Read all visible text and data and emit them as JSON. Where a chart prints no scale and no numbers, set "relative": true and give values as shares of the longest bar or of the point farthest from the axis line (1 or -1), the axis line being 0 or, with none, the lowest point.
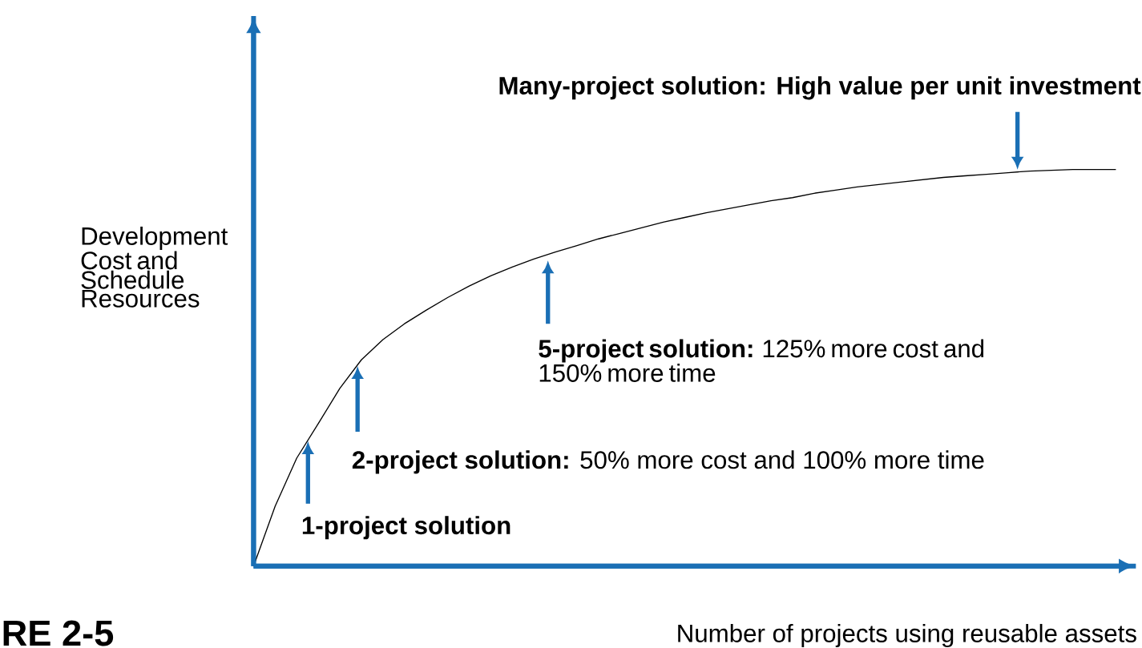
{
  "chart_data": {
    "type": "line",
    "relative": true,
    "ylabel": "Development Cost and Schedule Resources",
    "xlabel": "Number of projects using reusable assets",
    "categories": [
      null,
      null,
      null,
      null,
      null,
      null,
      null,
      null,
      null,
      null,
      null,
      null,
      null,
      null,
      null,
      null,
      null,
      null,
      null,
      null,
      null,
      null,
      null,
      null,
      null,
      null,
      null,
      null,
      null,
      null,
      null,
      null,
      null,
      null,
      null,
      null,
      null,
      null,
      null,
      null,
      null
    ],
    "values": [
      0,
      0.151,
      0.272,
      0.359,
      0.448,
      0.52,
      0.571,
      0.611,
      0.645,
      0.677,
      0.706,
      0.732,
      0.754,
      0.774,
      0.792,
      0.808,
      0.825,
      0.839,
      0.853,
      0.867,
      0.879,
      0.891,
      0.901,
      0.911,
      0.921,
      0.929,
      0.94,
      0.948,
      0.956,
      0.962,
      0.968,
      0.974,
      0.98,
      0.984,
      0.988,
      0.992,
      0.996,
      0.998,
      1,
      1,
      1
    ],
    "color": "#000000",
    "annotations": [
      "Many-project solution: High value per unit investment",
      "**5-project solution:** 125% more cost and 150% more time",
      "**2-project solution:** 50% more cost and 100% more time",
      "1-project solution",
      "RE 2-5"
    ]
  }
}
